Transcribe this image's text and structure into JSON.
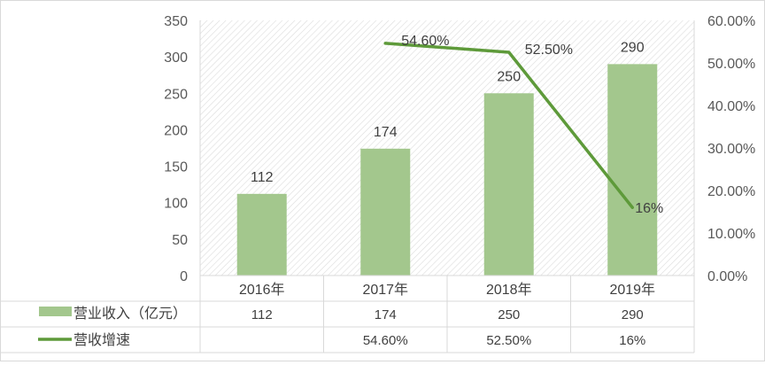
{
  "chart_data": {
    "type": "bar",
    "categories": [
      "2016年",
      "2017年",
      "2018年",
      "2019年"
    ],
    "series": [
      {
        "name": "营业收入（亿元）",
        "type": "bar",
        "axis": "left",
        "values": [
          112,
          174,
          250,
          290
        ],
        "labels": [
          "112",
          "174",
          "250",
          "290"
        ],
        "table_values": [
          "112",
          "174",
          "250",
          "290"
        ],
        "color": "#a3c78d"
      },
      {
        "name": "营收增速",
        "type": "line",
        "axis": "right",
        "values": [
          null,
          0.546,
          0.525,
          0.16
        ],
        "labels": [
          "",
          "54.60%",
          "52.50%",
          "16%"
        ],
        "table_values": [
          "",
          "54.60%",
          "52.50%",
          "16%"
        ],
        "color": "#5e9a3a"
      }
    ],
    "y_left": {
      "min": 0,
      "max": 350,
      "step": 50,
      "ticks": [
        "0",
        "50",
        "100",
        "150",
        "200",
        "250",
        "300",
        "350"
      ]
    },
    "y_right": {
      "min": 0,
      "max": 0.6,
      "step": 0.1,
      "ticks": [
        "0.00%",
        "10.00%",
        "20.00%",
        "30.00%",
        "40.00%",
        "50.00%",
        "60.00%"
      ]
    },
    "plot_background": "diagonal-hatch",
    "legend": "data-table",
    "colors": {
      "bar": "#a3c78d",
      "line": "#5e9a3a",
      "grid": "#d9d9d9",
      "text": "#404040"
    }
  }
}
